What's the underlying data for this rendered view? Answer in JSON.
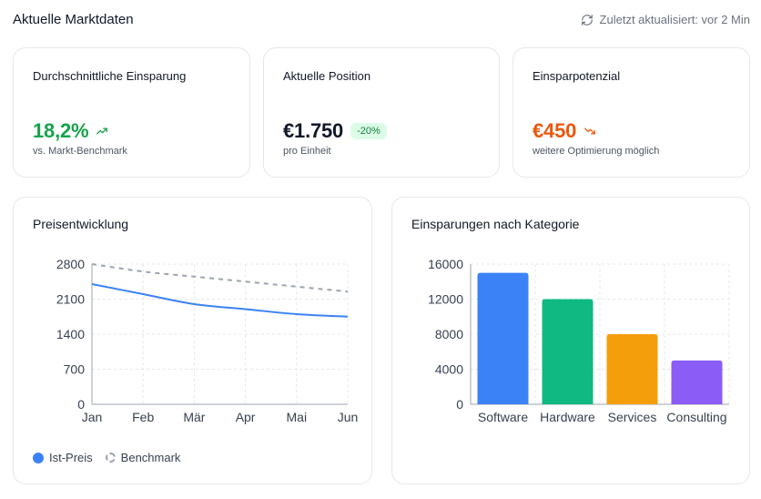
{
  "header": {
    "title": "Aktuelle Marktdaten",
    "updated": "Zuletzt aktualisiert: vor 2 Min"
  },
  "stats": [
    {
      "label": "Durchschnittliche Einsparung",
      "value": "18,2%",
      "sub": "vs. Markt-Benchmark",
      "trend_icon": "trending-up-icon",
      "color": "#16a34a"
    },
    {
      "label": "Aktuelle Position",
      "value": "€1.750",
      "badge": "-20%",
      "sub": "pro Einheit",
      "color": "#111827"
    },
    {
      "label": "Einsparpotenzial",
      "value": "€450",
      "sub": "weitere Optimierung möglich",
      "trend_icon": "trending-down-icon",
      "color": "#ea580c"
    }
  ],
  "chart_data": [
    {
      "type": "line",
      "title": "Preisentwicklung",
      "categories": [
        "Jan",
        "Feb",
        "Mär",
        "Apr",
        "Mai",
        "Jun"
      ],
      "series": [
        {
          "name": "Ist-Preis",
          "values": [
            2400,
            2200,
            2000,
            1900,
            1800,
            1750
          ],
          "color": "#3b82f6",
          "style": "solid"
        },
        {
          "name": "Benchmark",
          "values": [
            2800,
            2650,
            2550,
            2450,
            2350,
            2250
          ],
          "color": "#9ca3af",
          "style": "dashed"
        }
      ],
      "yticks": [
        0,
        700,
        1400,
        2100,
        2800
      ],
      "ylim": [
        0,
        2800
      ],
      "grid": true,
      "legend": "bottom-left"
    },
    {
      "type": "bar",
      "title": "Einsparungen nach Kategorie",
      "categories": [
        "Software",
        "Hardware",
        "Services",
        "Consulting"
      ],
      "values": [
        15000,
        12000,
        8000,
        5000
      ],
      "colors": [
        "#3b82f6",
        "#10b981",
        "#f59e0b",
        "#8b5cf6"
      ],
      "yticks": [
        0,
        4000,
        8000,
        12000,
        16000
      ],
      "ylim": [
        0,
        16000
      ],
      "grid": true
    }
  ]
}
